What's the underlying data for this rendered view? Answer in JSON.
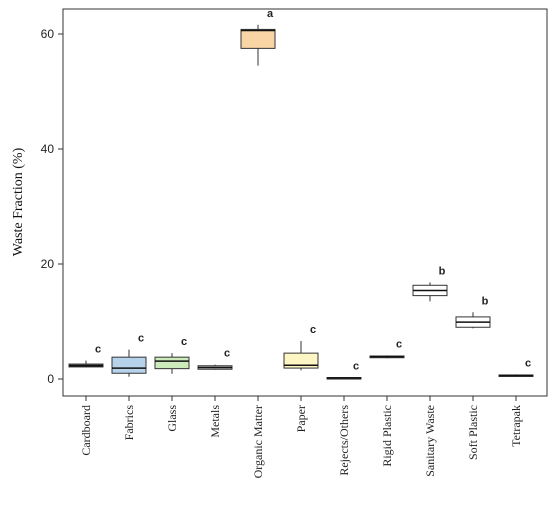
{
  "chart_data": {
    "type": "box",
    "title": "",
    "xlabel": "",
    "ylabel": "Waste Fraction (%)",
    "ylim": [
      -3,
      63
    ],
    "yticks": [
      0,
      20,
      40,
      60
    ],
    "grid": false,
    "categories": [
      "Cardboard",
      "Fabrics",
      "Glass",
      "Metals",
      "Organic Matter",
      "Paper",
      "Rejects/Others",
      "Rigid Plastic",
      "Sanitary Waste",
      "Soft Plastic",
      "Tetrapak"
    ],
    "boxes": [
      {
        "category": "Cardboard",
        "min": 2.0,
        "q1": 2.1,
        "median": 2.3,
        "q3": 2.6,
        "max": 3.2,
        "group": "c",
        "fill": "#555555"
      },
      {
        "category": "Fabrics",
        "min": 0.4,
        "q1": 1.0,
        "median": 1.9,
        "q3": 3.8,
        "max": 5.1,
        "group": "c",
        "fill": "#b7d3ec"
      },
      {
        "category": "Glass",
        "min": 0.9,
        "q1": 1.8,
        "median": 3.1,
        "q3": 3.8,
        "max": 4.5,
        "group": "c",
        "fill": "#cdeabb"
      },
      {
        "category": "Metals",
        "min": 1.6,
        "q1": 1.7,
        "median": 2.0,
        "q3": 2.3,
        "max": 2.5,
        "group": "c",
        "fill": "#d6d6d6"
      },
      {
        "category": "Organic Matter",
        "min": 54.5,
        "q1": 57.5,
        "median": 60.6,
        "q3": 60.8,
        "max": 61.6,
        "group": "a",
        "fill": "#f9d4a4"
      },
      {
        "category": "Paper",
        "min": 1.5,
        "q1": 1.9,
        "median": 2.4,
        "q3": 4.5,
        "max": 6.6,
        "group": "c",
        "fill": "#fdf6c4"
      },
      {
        "category": "Rejects/Others",
        "min": 0.1,
        "q1": 0.15,
        "median": 0.2,
        "q3": 0.25,
        "max": 0.3,
        "group": "c",
        "fill": "#555555"
      },
      {
        "category": "Rigid Plastic",
        "min": 3.6,
        "q1": 3.7,
        "median": 3.9,
        "q3": 4.0,
        "max": 4.1,
        "group": "c",
        "fill": "#555555"
      },
      {
        "category": "Sanitary Waste",
        "min": 13.5,
        "q1": 14.5,
        "median": 15.4,
        "q3": 16.3,
        "max": 16.8,
        "group": "b",
        "fill": "#ffffff"
      },
      {
        "category": "Soft Plastic",
        "min": 8.8,
        "q1": 9.0,
        "median": 9.9,
        "q3": 10.8,
        "max": 11.6,
        "group": "b",
        "fill": "#ffffff"
      },
      {
        "category": "Tetrapak",
        "min": 0.4,
        "q1": 0.5,
        "median": 0.6,
        "q3": 0.7,
        "max": 0.8,
        "group": "c",
        "fill": "#555555"
      }
    ]
  }
}
